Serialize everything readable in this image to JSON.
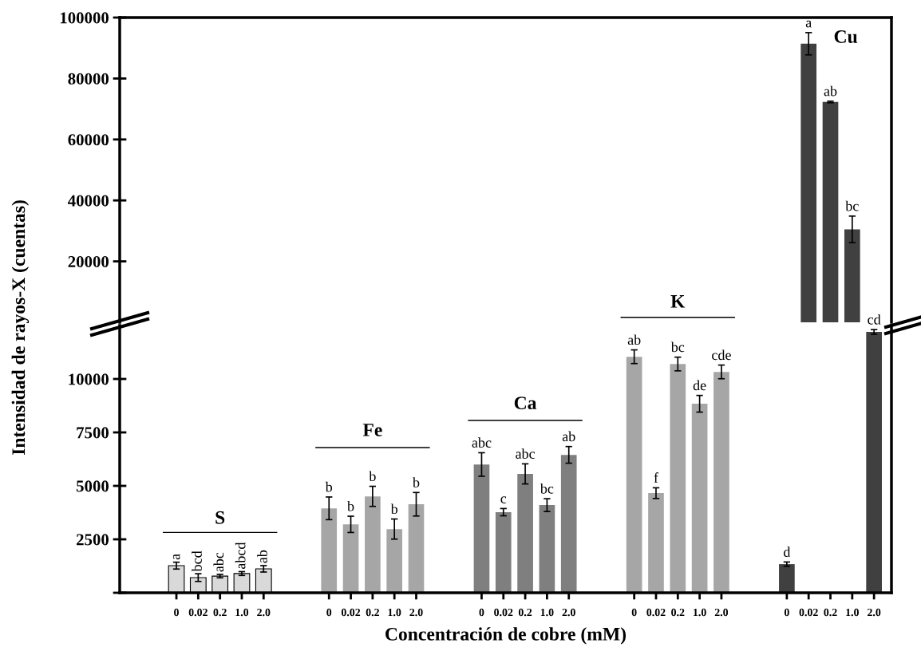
{
  "chart_data": [
    {
      "type": "bar",
      "ylabel": "Intensidad de rayos-X (cuentas)",
      "tick_labels": "y",
      "categories": [
        "0",
        "0.02",
        "0.2",
        "1.0",
        "2.0",
        null,
        null,
        "0",
        "0.02",
        "0.2",
        "1.0",
        "2.0",
        null,
        null,
        "0",
        "0.02",
        "0.2",
        "1.0",
        "2.0",
        null,
        null,
        "0",
        "0.02",
        "0.2",
        "1.0",
        "2.0",
        null,
        null,
        "0",
        "0.02",
        "0.2",
        "1.0",
        "2.0"
      ],
      "values": [
        null,
        null,
        null,
        null,
        null,
        null,
        null,
        null,
        null,
        null,
        null,
        null,
        null,
        null,
        null,
        null,
        null,
        null,
        null,
        null,
        null,
        null,
        null,
        null,
        null,
        null,
        null,
        null,
        null,
        91400,
        72300,
        30500,
        null
      ],
      "errors": [
        null,
        null,
        null,
        null,
        null,
        null,
        null,
        null,
        null,
        null,
        null,
        null,
        null,
        null,
        null,
        null,
        null,
        null,
        null,
        null,
        null,
        null,
        null,
        null,
        null,
        null,
        null,
        null,
        null,
        3650,
        260,
        4350,
        null
      ],
      "value_labels": [
        null,
        null,
        null,
        null,
        null,
        null,
        null,
        null,
        null,
        null,
        null,
        null,
        null,
        null,
        null,
        null,
        null,
        null,
        null,
        null,
        null,
        null,
        null,
        null,
        null,
        null,
        null,
        null,
        null,
        "a",
        "ab",
        "bc",
        null
      ],
      "colors": [
        null,
        null,
        null,
        null,
        null,
        null,
        null,
        null,
        null,
        null,
        null,
        null,
        null,
        null,
        null,
        null,
        null,
        null,
        null,
        null,
        null,
        null,
        null,
        null,
        null,
        null,
        null,
        null,
        null,
        "#404040",
        "#404040",
        "#404040",
        null
      ],
      "annotations": [
        "Cu"
      ],
      "ylim": [
        0,
        100000
      ],
      "yticks": [
        20000,
        40000,
        60000,
        80000,
        100000
      ],
      "grid": false,
      "legend": false
    },
    {
      "type": "bar",
      "xlabel": "Concentración de cobre (mM)",
      "categories": [
        "0",
        "0.02",
        "0.2",
        "1.0",
        "2.0",
        null,
        null,
        "0",
        "0.02",
        "0.2",
        "1.0",
        "2.0",
        null,
        null,
        "0",
        "0.02",
        "0.2",
        "1.0",
        "2.0",
        null,
        null,
        "0",
        "0.02",
        "0.2",
        "1.0",
        "2.0",
        null,
        null,
        "0",
        "0.02",
        "0.2",
        "1.0",
        "2.0"
      ],
      "values": [
        1270,
        710,
        780,
        900,
        1120,
        null,
        null,
        3950,
        3200,
        4510,
        2980,
        4140,
        null,
        null,
        6000,
        3770,
        5560,
        4100,
        6450,
        null,
        null,
        11040,
        4660,
        10700,
        8840,
        10330,
        null,
        null,
        1340,
        null,
        null,
        null,
        12200
      ],
      "errors": [
        160,
        180,
        80,
        90,
        150,
        null,
        null,
        530,
        380,
        470,
        470,
        550,
        null,
        null,
        550,
        170,
        470,
        300,
        390,
        null,
        null,
        320,
        250,
        320,
        390,
        320,
        null,
        null,
        100,
        null,
        null,
        null,
        110
      ],
      "value_labels": [
        "a",
        "bcd",
        "abc",
        "abcd",
        "ab",
        null,
        null,
        "b",
        "b",
        "b",
        "b",
        "b",
        null,
        null,
        "abc",
        "c",
        "abc",
        "bc",
        "ab",
        null,
        null,
        "ab",
        "f",
        "bc",
        "de",
        "cde",
        null,
        null,
        "d",
        null,
        null,
        null,
        "cd"
      ],
      "colors": [
        "#d9d9d9",
        "#d9d9d9",
        "#d9d9d9",
        "#d9d9d9",
        "#d9d9d9",
        null,
        null,
        "#a6a6a6",
        "#a6a6a6",
        "#a6a6a6",
        "#a6a6a6",
        "#a6a6a6",
        null,
        null,
        "#7f7f7f",
        "#7f7f7f",
        "#7f7f7f",
        "#7f7f7f",
        "#7f7f7f",
        null,
        null,
        "#a6a6a6",
        "#a6a6a6",
        "#a6a6a6",
        "#a6a6a6",
        "#a6a6a6",
        null,
        null,
        "#404040",
        "#404040",
        "#404040",
        "#404040",
        "#404040"
      ],
      "annotations": [
        "S",
        "Fe",
        "Ca",
        "K"
      ],
      "ylim": [
        0,
        12500
      ],
      "yticks": [
        {
          "value": 0,
          "label": null
        },
        2500,
        5000,
        7500,
        10000
      ],
      "grid": false,
      "legend": false
    }
  ]
}
